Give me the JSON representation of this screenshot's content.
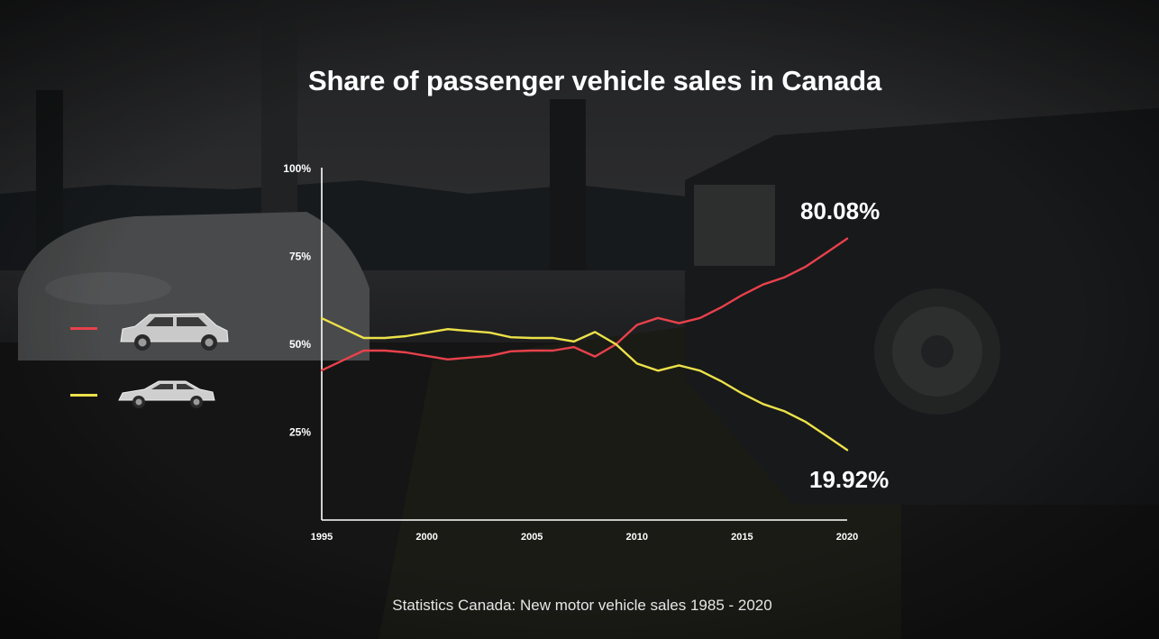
{
  "chart_data": {
    "type": "line",
    "title": "Share of passenger vehicle sales in Canada",
    "source": "Statistics Canada: New motor vehicle sales 1985 - 2020",
    "x": [
      1995,
      1996,
      1997,
      1998,
      1999,
      2000,
      2001,
      2002,
      2003,
      2004,
      2005,
      2006,
      2007,
      2008,
      2009,
      2010,
      2011,
      2012,
      2013,
      2014,
      2015,
      2016,
      2017,
      2018,
      2019,
      2020
    ],
    "xticks": [
      "1995",
      "2000",
      "2005",
      "2010",
      "2015",
      "2020"
    ],
    "yticks": [
      "25%",
      "50%",
      "75%",
      "100%"
    ],
    "ylim": [
      0,
      100
    ],
    "xlim": [
      1995,
      2020
    ],
    "series": [
      {
        "legend_icon": "suv-car-icon",
        "color": "#e8414b",
        "values": [
          42.6,
          45.4,
          48.2,
          48.2,
          47.7,
          46.7,
          45.7,
          46.2,
          46.7,
          48.0,
          48.2,
          48.2,
          49.2,
          46.5,
          50.0,
          55.5,
          57.5,
          56.0,
          57.5,
          60.5,
          64.0,
          67.0,
          69.0,
          72.0,
          76.0,
          80.08
        ],
        "end_label": "80.08%"
      },
      {
        "legend_icon": "sedan-car-icon",
        "color": "#ece14a",
        "values": [
          57.4,
          54.6,
          51.8,
          51.8,
          52.3,
          53.3,
          54.3,
          53.8,
          53.3,
          52.0,
          51.8,
          51.8,
          50.8,
          53.5,
          50.0,
          44.5,
          42.5,
          44.0,
          42.5,
          39.5,
          36.0,
          33.0,
          31.0,
          28.0,
          24.0,
          19.92
        ],
        "end_label": "19.92%"
      }
    ],
    "grid": false,
    "legend": "left"
  }
}
